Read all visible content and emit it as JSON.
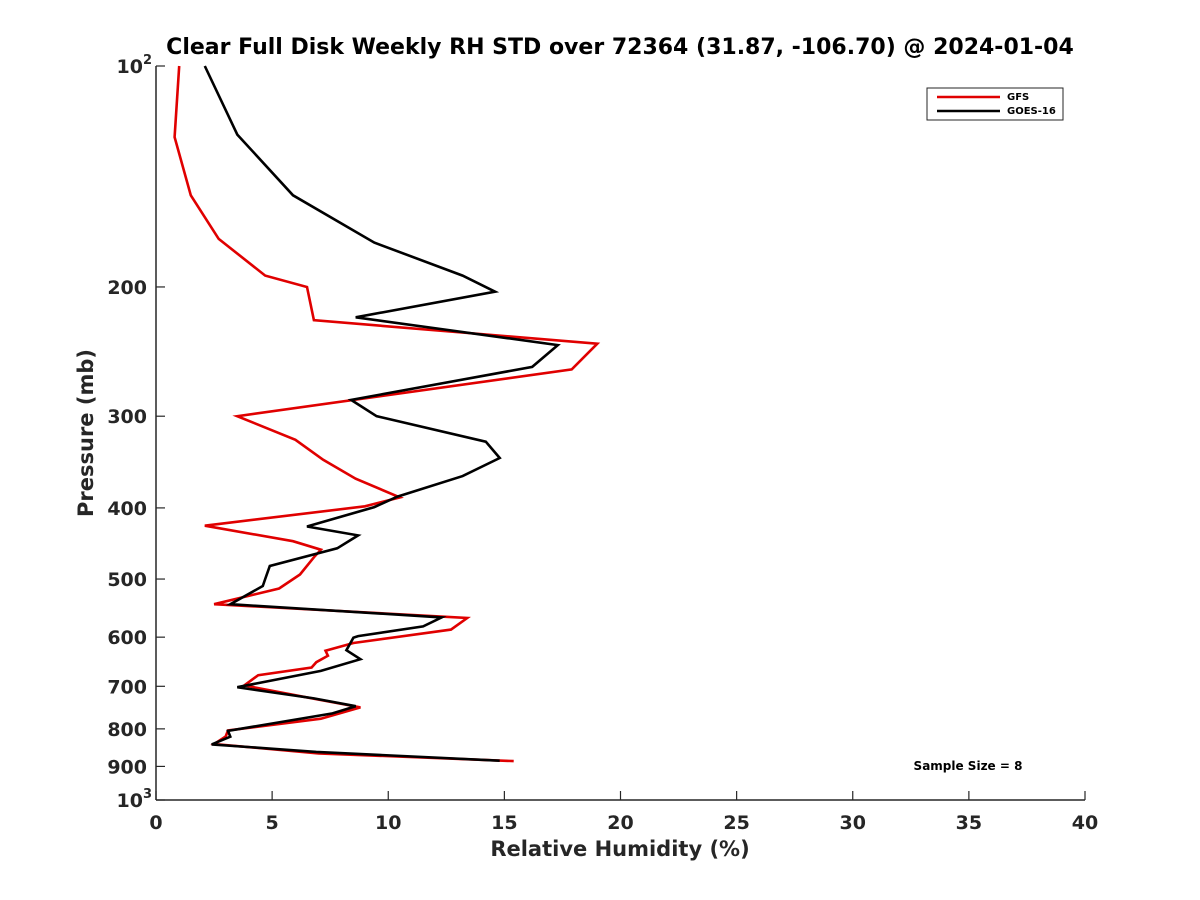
{
  "chart_data": {
    "type": "line",
    "title": "Clear Full Disk Weekly RH STD over 72364 (31.87, -106.70) @ 2024-01-04",
    "xlabel": "Relative Humidity (%)",
    "ylabel": "Pressure (mb)",
    "xlim": [
      0,
      40
    ],
    "ylim": [
      100,
      1000
    ],
    "yscale": "log",
    "y_reversed": true,
    "grid": false,
    "legend_position": "top-right",
    "x_ticks": [
      "0",
      "5",
      "10",
      "15",
      "20",
      "25",
      "30",
      "35",
      "40"
    ],
    "y_ticks": [
      {
        "value": 100,
        "label": "10",
        "exp": "2"
      },
      {
        "value": 200,
        "label": "200",
        "exp": ""
      },
      {
        "value": 300,
        "label": "300",
        "exp": ""
      },
      {
        "value": 400,
        "label": "400",
        "exp": ""
      },
      {
        "value": 500,
        "label": "500",
        "exp": ""
      },
      {
        "value": 600,
        "label": "600",
        "exp": ""
      },
      {
        "value": 700,
        "label": "700",
        "exp": ""
      },
      {
        "value": 800,
        "label": "800",
        "exp": ""
      },
      {
        "value": 900,
        "label": "900",
        "exp": ""
      },
      {
        "value": 1000,
        "label": "10",
        "exp": "3"
      }
    ],
    "annotation": "Sample Size = 8",
    "series": [
      {
        "name": "GFS",
        "color": "#e00000",
        "points": [
          [
            1.0,
            100
          ],
          [
            0.8,
            125
          ],
          [
            1.5,
            150
          ],
          [
            2.7,
            172
          ],
          [
            4.7,
            193
          ],
          [
            6.5,
            200
          ],
          [
            6.8,
            222
          ],
          [
            19.0,
            239
          ],
          [
            17.9,
            259
          ],
          [
            3.5,
            300
          ],
          [
            6.0,
            323
          ],
          [
            7.2,
            344
          ],
          [
            8.6,
            365
          ],
          [
            10.5,
            387
          ],
          [
            9.0,
            398
          ],
          [
            2.1,
            423
          ],
          [
            5.9,
            444
          ],
          [
            7.1,
            456
          ],
          [
            6.8,
            467
          ],
          [
            6.2,
            493
          ],
          [
            5.3,
            515
          ],
          [
            2.5,
            541
          ],
          [
            13.4,
            565
          ],
          [
            12.7,
            586
          ],
          [
            8.5,
            611
          ],
          [
            7.3,
            626
          ],
          [
            7.4,
            636
          ],
          [
            6.9,
            649
          ],
          [
            6.7,
            660
          ],
          [
            4.4,
            676
          ],
          [
            3.8,
            698
          ],
          [
            6.1,
            721
          ],
          [
            8.8,
            748
          ],
          [
            7.1,
            775
          ],
          [
            3.1,
            804
          ],
          [
            3.0,
            819
          ],
          [
            2.5,
            839
          ],
          [
            7.0,
            864
          ],
          [
            15.4,
            885
          ]
        ]
      },
      {
        "name": "GOES-16",
        "color": "#000000",
        "points": [
          [
            2.1,
            100
          ],
          [
            3.5,
            124
          ],
          [
            5.9,
            150
          ],
          [
            9.4,
            174
          ],
          [
            13.2,
            193
          ],
          [
            14.6,
            203
          ],
          [
            8.6,
            220
          ],
          [
            17.3,
            240
          ],
          [
            16.2,
            257
          ],
          [
            8.4,
            285
          ],
          [
            9.5,
            300
          ],
          [
            14.2,
            325
          ],
          [
            14.8,
            342
          ],
          [
            13.2,
            362
          ],
          [
            10.4,
            386
          ],
          [
            9.4,
            399
          ],
          [
            6.5,
            424
          ],
          [
            8.7,
            436
          ],
          [
            7.8,
            454
          ],
          [
            4.9,
            480
          ],
          [
            4.7,
            500
          ],
          [
            4.6,
            511
          ],
          [
            3.2,
            541
          ],
          [
            12.3,
            564
          ],
          [
            11.5,
            580
          ],
          [
            8.7,
            598
          ],
          [
            8.5,
            601
          ],
          [
            8.2,
            625
          ],
          [
            8.8,
            643
          ],
          [
            7.1,
            667
          ],
          [
            3.5,
            702
          ],
          [
            6.8,
            727
          ],
          [
            8.6,
            745
          ],
          [
            7.6,
            762
          ],
          [
            3.1,
            805
          ],
          [
            3.2,
            820
          ],
          [
            2.4,
            840
          ],
          [
            6.9,
            860
          ],
          [
            14.8,
            884
          ]
        ]
      }
    ]
  }
}
